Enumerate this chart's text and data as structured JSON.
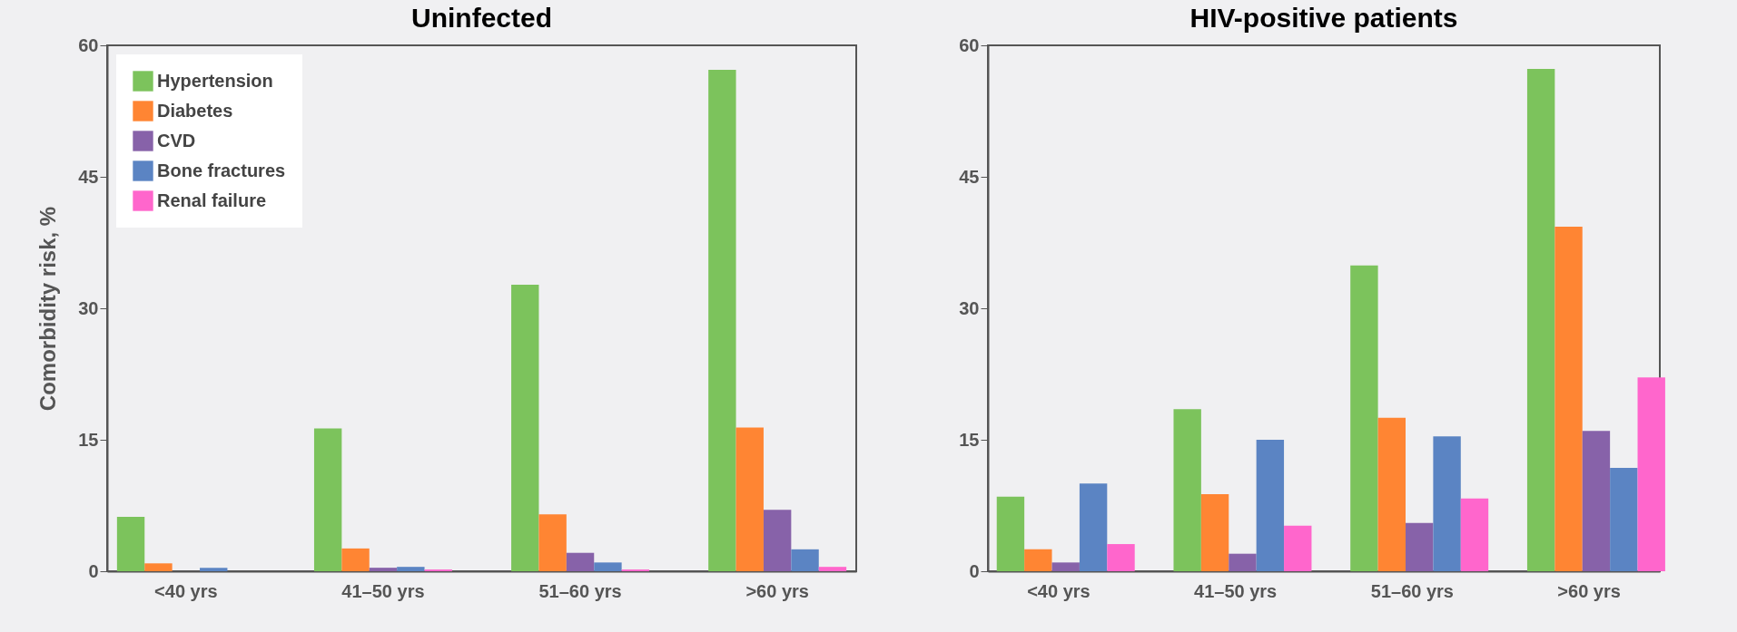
{
  "chart_data": [
    {
      "type": "bar",
      "title": "Uninfected",
      "ylabel": "Comorbidity risk, %",
      "categories": [
        "<40 yrs",
        "41–50 yrs",
        "51–60 yrs",
        ">60 yrs"
      ],
      "ylim": [
        0,
        60
      ],
      "yticks": [
        0,
        15,
        30,
        45,
        60
      ],
      "legend": "top left",
      "series": [
        {
          "name": "Hypertension",
          "color": "#7cc35c",
          "values": [
            6.2,
            16.3,
            32.7,
            57.2
          ]
        },
        {
          "name": "Diabetes",
          "color": "#ff8533",
          "values": [
            0.9,
            2.6,
            6.5,
            16.4
          ]
        },
        {
          "name": "CVD",
          "color": "#8762a9",
          "values": [
            0,
            0.4,
            2.1,
            7.0
          ]
        },
        {
          "name": "Bone fractures",
          "color": "#5b84c3",
          "values": [
            0.4,
            0.5,
            1.0,
            2.5
          ]
        },
        {
          "name": "Renal failure",
          "color": "#ff66cc",
          "values": [
            0,
            0.2,
            0.2,
            0.5
          ]
        }
      ]
    },
    {
      "type": "bar",
      "title": "HIV-positive patients",
      "categories": [
        "<40 yrs",
        "41–50 yrs",
        "51–60 yrs",
        ">60 yrs"
      ],
      "ylim": [
        0,
        60
      ],
      "yticks": [
        0,
        15,
        30,
        45,
        60
      ],
      "series": [
        {
          "color": "#7cc35c",
          "values": [
            8.5,
            18.5,
            34.9,
            57.3
          ]
        },
        {
          "color": "#ff8533",
          "values": [
            2.5,
            8.8,
            17.5,
            39.3
          ]
        },
        {
          "color": "#8762a9",
          "values": [
            1.0,
            2.0,
            5.5,
            16.0
          ]
        },
        {
          "color": "#5b84c3",
          "values": [
            10.0,
            15.0,
            15.4,
            11.8
          ]
        },
        {
          "color": "#ff66cc",
          "values": [
            3.1,
            5.2,
            8.3,
            22.1
          ]
        }
      ]
    }
  ]
}
